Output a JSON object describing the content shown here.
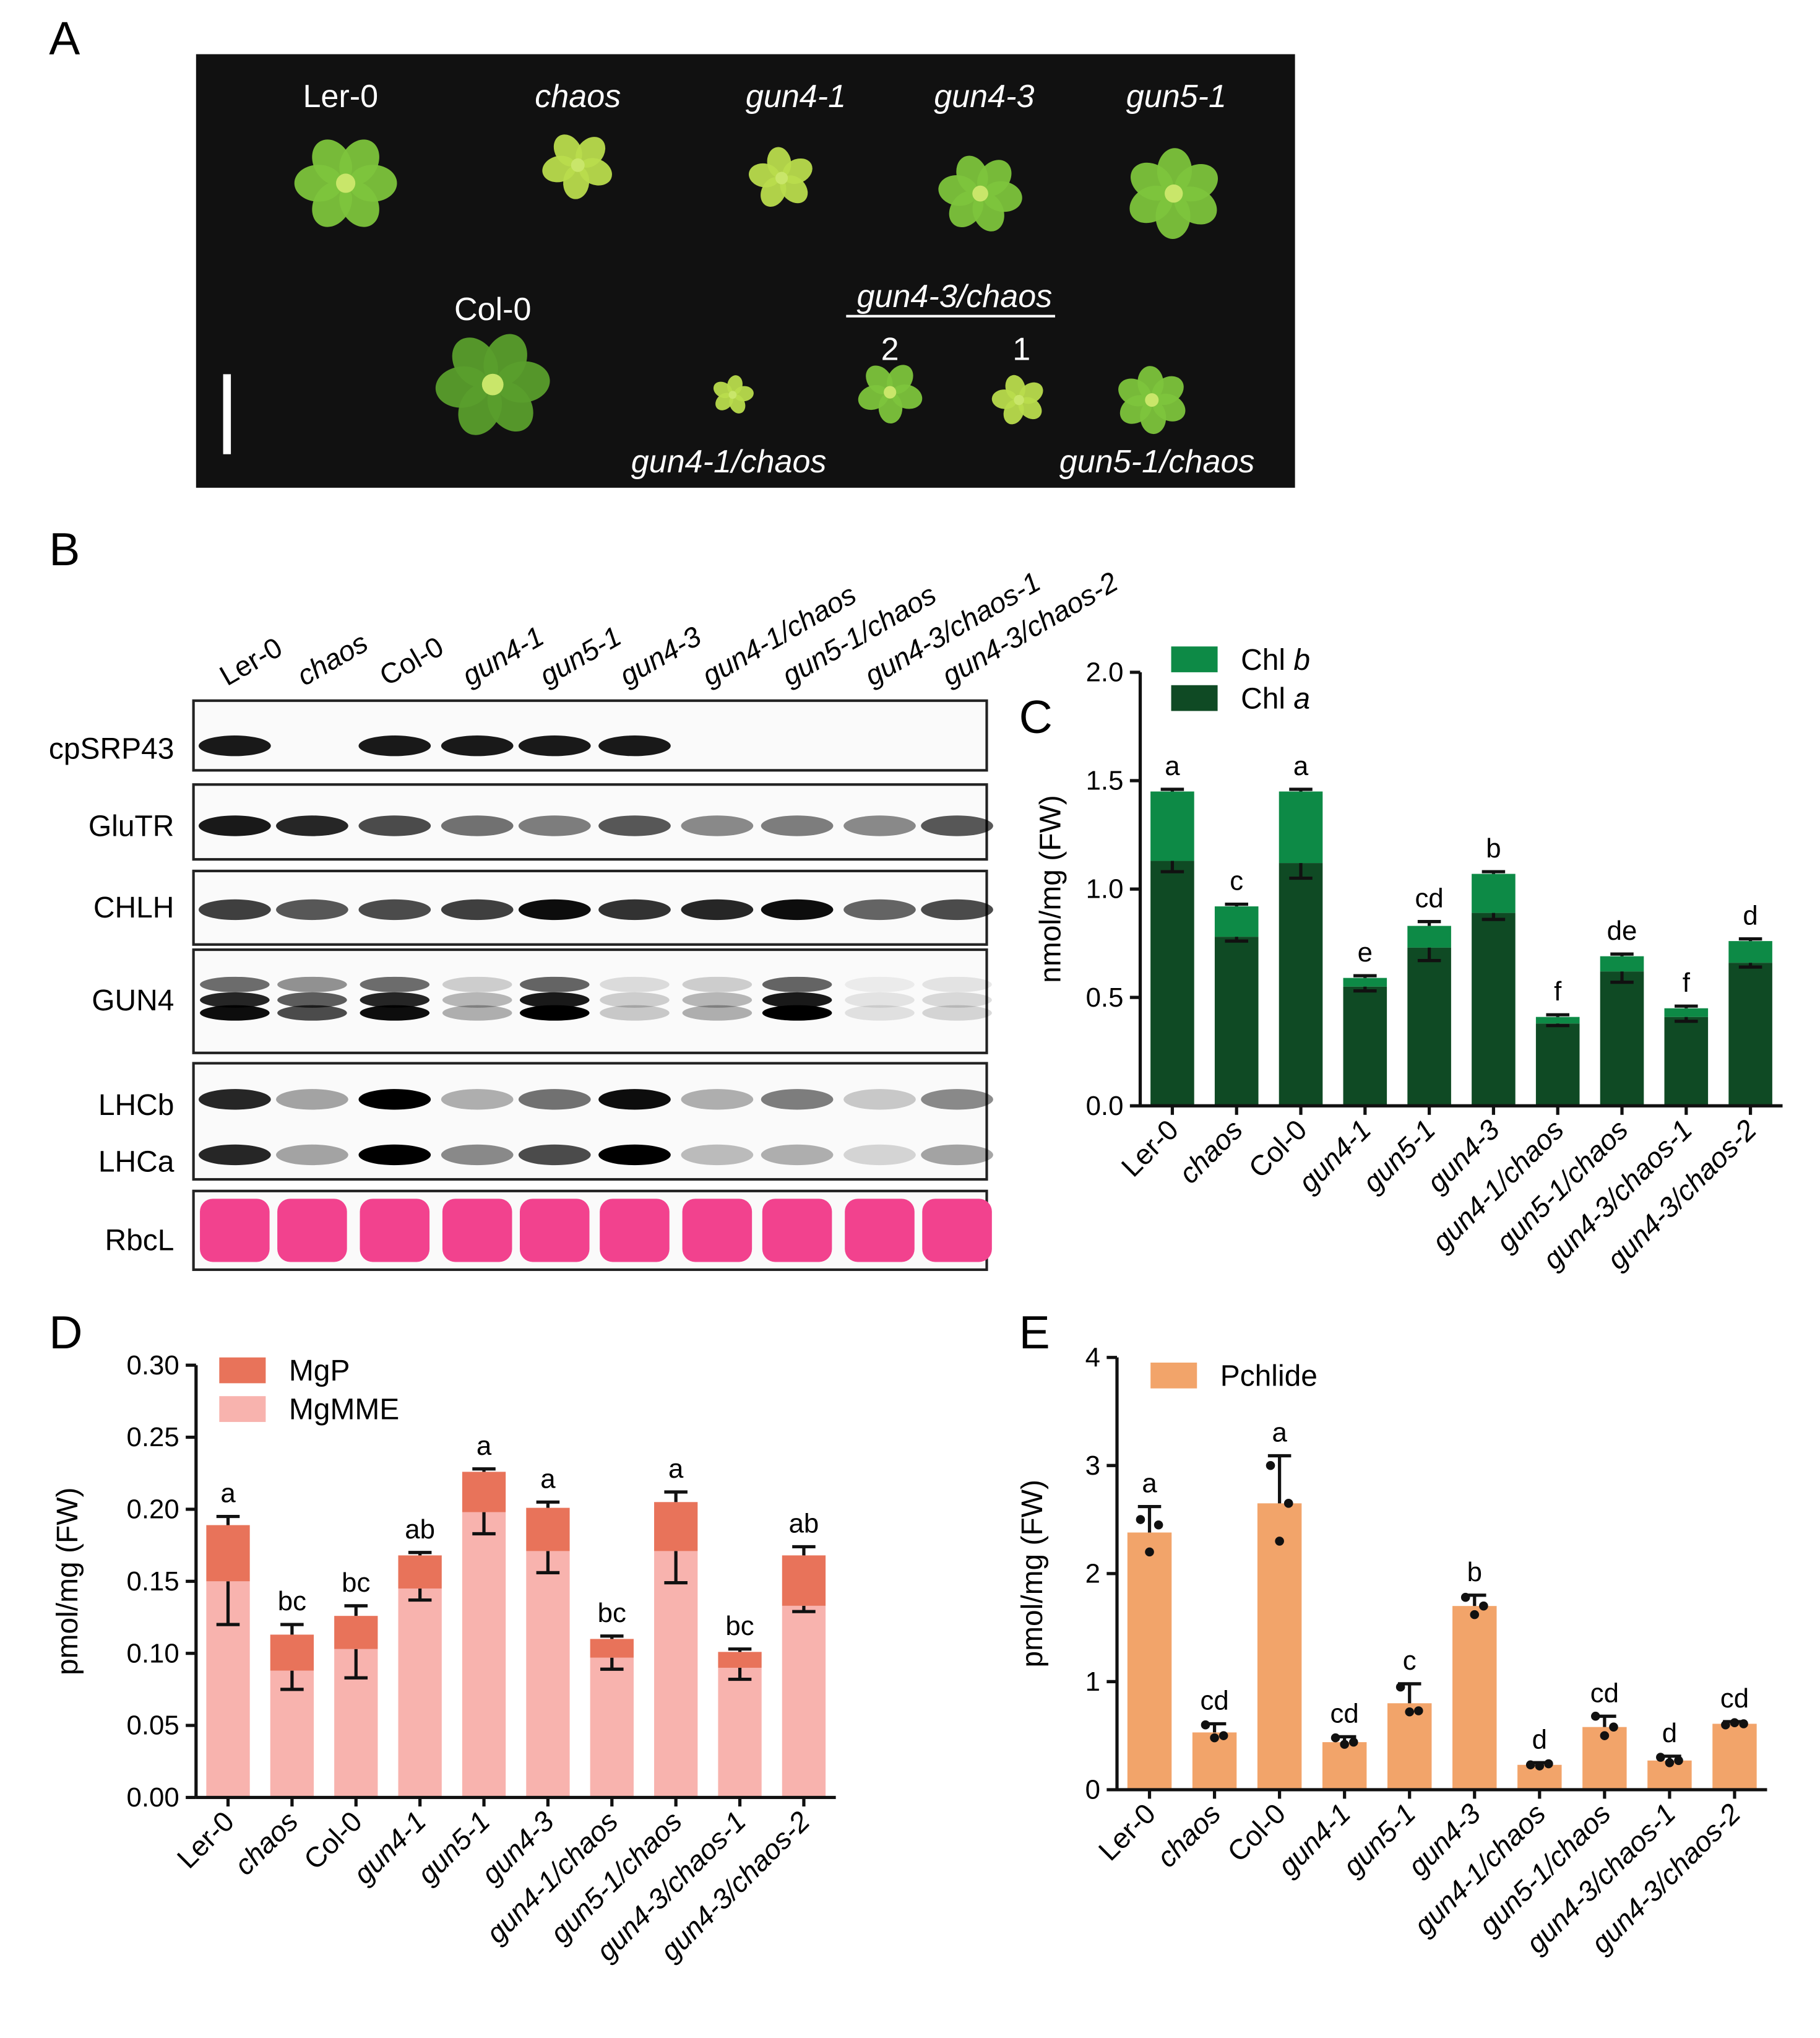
{
  "panel_labels": {
    "a": "A",
    "b": "B",
    "c": "C",
    "d": "D",
    "e": "E"
  },
  "panel_a": {
    "row1": [
      "Ler-0",
      "chaos",
      "gun4-1",
      "gun4-3",
      "gun5-1"
    ],
    "row2_top": "Col-0",
    "group_title": "gun4-3/chaos",
    "group_line_2": "2",
    "group_line_1": "1",
    "bottom_left": "gun4-1/chaos",
    "bottom_right": "gun5-1/chaos"
  },
  "panel_b": {
    "lanes": [
      "Ler-0",
      "chaos",
      "Col-0",
      "gun4-1",
      "gun5-1",
      "gun4-3",
      "gun4-1/chaos",
      "gun5-1/chaos",
      "gun4-3/chaos-1",
      "gun4-3/chaos-2"
    ],
    "rows": [
      "cpSRP43",
      "GluTR",
      "CHLH",
      "GUN4",
      "LHCb",
      "LHCa",
      "RbcL"
    ],
    "band_intensity": {
      "cpSRP43": [
        0.9,
        0,
        0.9,
        0.9,
        0.9,
        0.9,
        0,
        0,
        0,
        0
      ],
      "GluTR": [
        0.9,
        0.85,
        0.7,
        0.55,
        0.5,
        0.65,
        0.45,
        0.5,
        0.45,
        0.65
      ],
      "CHLH": [
        0.75,
        0.65,
        0.7,
        0.75,
        0.95,
        0.8,
        0.85,
        0.95,
        0.6,
        0.7
      ],
      "GUN4": [
        0.95,
        0.7,
        0.95,
        0.3,
        1.0,
        0.2,
        0.3,
        1.0,
        0.1,
        0.15
      ],
      "LHCb": [
        0.85,
        0.35,
        1.0,
        0.3,
        0.55,
        0.95,
        0.3,
        0.5,
        0.2,
        0.45
      ],
      "LHCa": [
        0.85,
        0.35,
        1.0,
        0.45,
        0.7,
        1.0,
        0.25,
        0.3,
        0.15,
        0.35
      ]
    }
  },
  "chart_data": [
    {
      "panel": "C",
      "type": "bar",
      "stacked": true,
      "categories": [
        "Ler-0",
        "chaos",
        "Col-0",
        "gun4-1",
        "gun5-1",
        "gun4-3",
        "gun4-1/chaos",
        "gun5-1/chaos",
        "gun4-3/chaos-1",
        "gun4-3/chaos-2"
      ],
      "series": [
        {
          "name": "Chl a",
          "values": [
            1.13,
            0.78,
            1.12,
            0.55,
            0.73,
            0.89,
            0.38,
            0.62,
            0.41,
            0.66
          ],
          "errors": [
            0.05,
            0.02,
            0.07,
            0.02,
            0.06,
            0.03,
            0.01,
            0.05,
            0.02,
            0.02
          ],
          "color": "#0f4a24"
        },
        {
          "name": "Chl b",
          "values": [
            0.32,
            0.14,
            0.33,
            0.04,
            0.1,
            0.18,
            0.03,
            0.07,
            0.04,
            0.1
          ],
          "errors": [
            0.01,
            0.01,
            0.01,
            0.01,
            0.02,
            0.01,
            0.01,
            0.01,
            0.01,
            0.01
          ],
          "color": "#0d8a46"
        }
      ],
      "letters": [
        "a",
        "c",
        "a",
        "e",
        "cd",
        "b",
        "f",
        "de",
        "f",
        "d"
      ],
      "ylabel": "nmol/mg (FW)",
      "ylim": [
        0,
        2.0
      ],
      "yticks": [
        "0.0",
        "0.5",
        "1.0",
        "1.5",
        "2.0"
      ],
      "legend": "top-left"
    },
    {
      "panel": "D",
      "type": "bar",
      "stacked": true,
      "categories": [
        "Ler-0",
        "chaos",
        "Col-0",
        "gun4-1",
        "gun5-1",
        "gun4-3",
        "gun4-1/chaos",
        "gun5-1/chaos",
        "gun4-3/chaos-1",
        "gun4-3/chaos-2"
      ],
      "series": [
        {
          "name": "MgMME",
          "values": [
            0.15,
            0.088,
            0.103,
            0.145,
            0.198,
            0.171,
            0.097,
            0.171,
            0.09,
            0.133
          ],
          "errors": [
            0.03,
            0.013,
            0.02,
            0.008,
            0.015,
            0.015,
            0.008,
            0.022,
            0.008,
            0.004
          ],
          "color": "#f8b3ae"
        },
        {
          "name": "MgP",
          "values": [
            0.039,
            0.025,
            0.023,
            0.023,
            0.028,
            0.03,
            0.013,
            0.034,
            0.011,
            0.035
          ],
          "errors": [
            0.006,
            0.007,
            0.007,
            0.002,
            0.002,
            0.004,
            0.002,
            0.007,
            0.002,
            0.006
          ],
          "color": "#e8735a"
        }
      ],
      "letters": [
        "a",
        "bc",
        "bc",
        "ab",
        "a",
        "a",
        "bc",
        "a",
        "bc",
        "ab"
      ],
      "ylabel": "pmol/mg (FW)",
      "ylim": [
        0,
        0.3
      ],
      "yticks": [
        "0.00",
        "0.05",
        "0.10",
        "0.15",
        "0.20",
        "0.25",
        "0.30"
      ],
      "legend": "top-left"
    },
    {
      "panel": "E",
      "type": "bar",
      "categories": [
        "Ler-0",
        "chaos",
        "Col-0",
        "gun4-1",
        "gun5-1",
        "gun4-3",
        "gun4-1/chaos",
        "gun5-1/chaos",
        "gun4-3/chaos-1",
        "gun4-3/chaos-2"
      ],
      "series": [
        {
          "name": "Pchlide",
          "values": [
            2.38,
            0.53,
            2.65,
            0.44,
            0.8,
            1.7,
            0.23,
            0.58,
            0.27,
            0.61
          ],
          "errors": [
            0.24,
            0.08,
            0.44,
            0.05,
            0.18,
            0.1,
            0.02,
            0.1,
            0.04,
            0.02
          ],
          "color": "#f2a46a"
        }
      ],
      "points": [
        [
          2.5,
          2.2,
          2.45
        ],
        [
          0.6,
          0.48,
          0.5
        ],
        [
          3.0,
          2.3,
          2.65
        ],
        [
          0.48,
          0.42,
          0.44
        ],
        [
          0.95,
          0.72,
          0.73
        ],
        [
          1.78,
          1.62,
          1.7
        ],
        [
          0.23,
          0.22,
          0.24
        ],
        [
          0.68,
          0.5,
          0.58
        ],
        [
          0.3,
          0.25,
          0.27
        ],
        [
          0.6,
          0.62,
          0.61
        ]
      ],
      "letters": [
        "a",
        "cd",
        "a",
        "cd",
        "c",
        "b",
        "d",
        "cd",
        "d",
        "cd"
      ],
      "ylabel": "pmol/mg (FW)",
      "ylim": [
        0,
        4
      ],
      "yticks": [
        "0",
        "1",
        "2",
        "3",
        "4"
      ],
      "legend": "top-left"
    }
  ],
  "colors": {
    "photo_bg": "#111111",
    "leaf_light": "#b9dc4d",
    "leaf_mid": "#7dc43c",
    "leaf_dark": "#5a9e2c",
    "ponceau": "#f2428e"
  }
}
